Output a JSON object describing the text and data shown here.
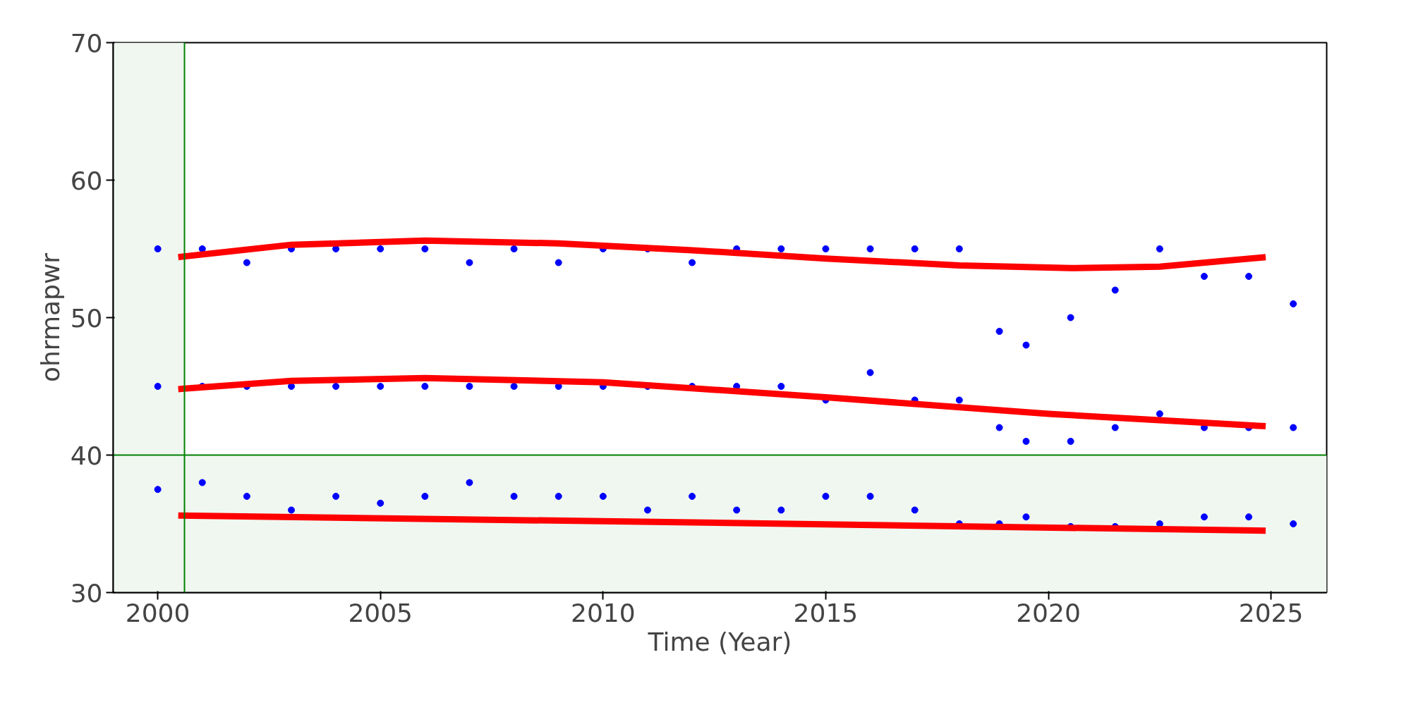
{
  "chart_data": {
    "type": "scatter",
    "xlabel": "Time (Year)",
    "ylabel": "ohrmapwr",
    "xlim": [
      1999,
      2026.25
    ],
    "ylim": [
      30,
      70
    ],
    "xticks": [
      2000,
      2005,
      2010,
      2015,
      2020,
      2025
    ],
    "yticks": [
      30,
      40,
      50,
      60,
      70
    ],
    "bands": [
      {
        "axis": "x",
        "from": 1999,
        "to": 2000.6,
        "color": "#f0f7f0"
      },
      {
        "axis": "y",
        "from": 30,
        "to": 40,
        "color": "#f0f7f0"
      }
    ],
    "ref_lines": [
      {
        "axis": "x",
        "value": 2000.6,
        "color": "#008000"
      },
      {
        "axis": "y",
        "value": 40,
        "color": "#008000"
      }
    ],
    "series": [
      {
        "marker": "circle",
        "color": "#0000ff",
        "x": [
          2000,
          2000,
          2000,
          2001,
          2001,
          2001,
          2002,
          2002,
          2002,
          2003,
          2003,
          2003,
          2004,
          2004,
          2004,
          2005,
          2005,
          2005,
          2006,
          2006,
          2006,
          2007,
          2007,
          2007,
          2008,
          2008,
          2008,
          2009,
          2009,
          2009,
          2010,
          2010,
          2010,
          2011,
          2011,
          2011,
          2012,
          2012,
          2012,
          2013,
          2013,
          2013,
          2014,
          2014,
          2014,
          2015,
          2015,
          2015,
          2016,
          2016,
          2016,
          2017,
          2017,
          2017,
          2018,
          2018,
          2018,
          2018.9,
          2018.9,
          2018.9,
          2019.5,
          2019.5,
          2019.5,
          2020.5,
          2020.5,
          2020.5,
          2021.5,
          2021.5,
          2021.5,
          2022.5,
          2022.5,
          2022.5,
          2023.5,
          2023.5,
          2023.5,
          2024.5,
          2024.5,
          2024.5,
          2025.5,
          2025.5,
          2025.5
        ],
        "values": [
          55,
          45,
          37.5,
          55,
          45,
          38,
          54,
          45,
          37,
          55,
          45,
          36,
          55,
          45,
          37,
          55,
          45,
          36.5,
          55,
          45,
          37,
          54,
          45,
          38,
          55,
          45,
          37,
          54,
          45,
          37,
          55,
          45,
          37,
          55,
          45,
          36,
          54,
          45,
          37,
          55,
          45,
          36,
          55,
          45,
          36,
          55,
          44,
          37,
          55,
          46,
          37,
          55,
          44,
          36,
          55,
          44,
          35,
          49,
          42,
          35,
          48,
          41,
          35.5,
          50,
          41,
          34.8,
          52,
          42,
          34.8,
          55,
          43,
          35,
          53,
          42,
          35.5,
          53,
          42,
          35.5,
          51,
          42,
          35
        ]
      },
      {
        "type": "line",
        "color": "#ff0000",
        "x": [
          2000.46,
          2003,
          2006,
          2009,
          2012,
          2015,
          2018,
          2020.5,
          2022.5,
          2024.88
        ],
        "values": [
          54.4,
          55.3,
          55.6,
          55.4,
          54.9,
          54.3,
          53.8,
          53.6,
          53.7,
          54.4
        ]
      },
      {
        "type": "line",
        "color": "#ff0000",
        "x": [
          2000.46,
          2003,
          2006,
          2010,
          2015,
          2020,
          2024.88
        ],
        "values": [
          44.8,
          45.4,
          45.6,
          45.3,
          44.2,
          43.0,
          42.1
        ]
      },
      {
        "type": "line",
        "color": "#ff0000",
        "x": [
          2000.46,
          2012,
          2024.88
        ],
        "values": [
          35.6,
          35.1,
          34.5
        ]
      }
    ]
  }
}
